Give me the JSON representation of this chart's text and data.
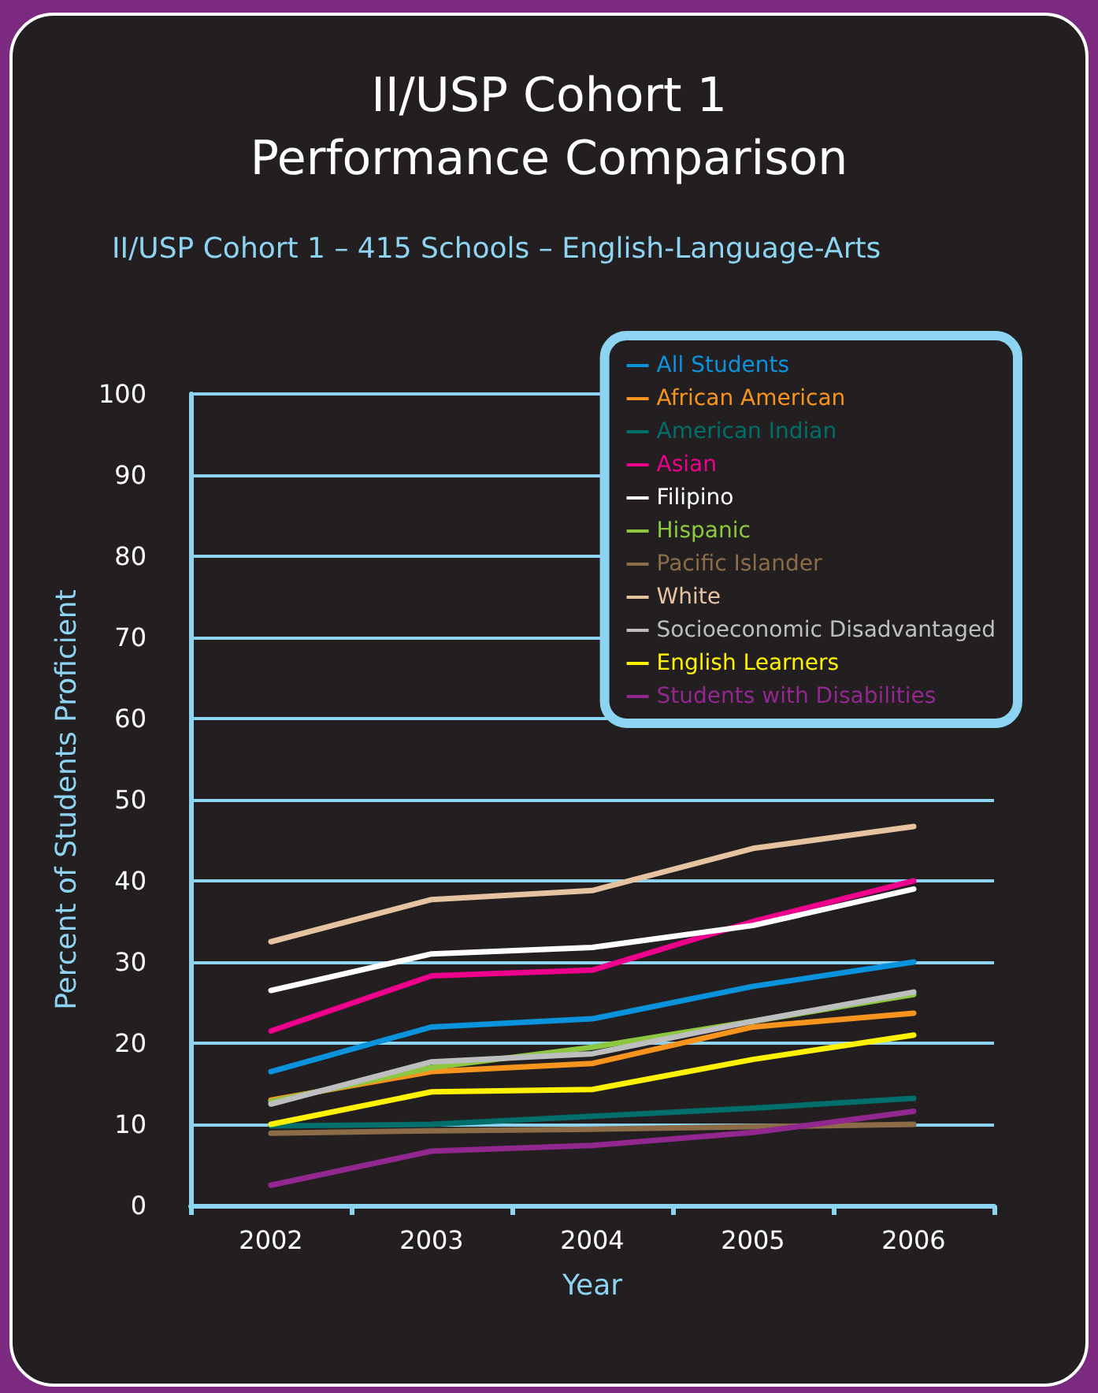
{
  "chart_data": {
    "type": "line",
    "title": "II/USP Cohort 1\nPerformance Comparison",
    "subtitle": "II/USP Cohort 1 – 415 Schools – English-Language-Arts",
    "xlabel": "Year",
    "ylabel": "Percent of Students Proficient",
    "categories": [
      "2002",
      "2003",
      "2004",
      "2005",
      "2006"
    ],
    "ylim": [
      0,
      100
    ],
    "yticks": [
      0,
      10,
      20,
      30,
      40,
      50,
      60,
      70,
      80,
      90,
      100
    ],
    "grid": "y",
    "legend": "top right",
    "marker": "none",
    "line_style": "solid",
    "series": [
      {
        "name": "All Students",
        "color": "#0a93dc",
        "values": [
          16.5,
          22,
          23,
          27,
          30
        ]
      },
      {
        "name": "African American",
        "color": "#f7941d",
        "values": [
          13,
          16.5,
          17.5,
          22,
          23.7
        ]
      },
      {
        "name": "American Indian",
        "color": "#006f6b",
        "values": [
          9.8,
          10,
          11,
          12,
          13.2
        ]
      },
      {
        "name": "Asian",
        "color": "#ec008c",
        "values": [
          21.5,
          28.3,
          29,
          35,
          40
        ]
      },
      {
        "name": "Filipino",
        "color": "#ffffff",
        "values": [
          26.5,
          31,
          31.8,
          34.5,
          39
        ]
      },
      {
        "name": "Hispanic",
        "color": "#8dc63f",
        "values": [
          12.8,
          17,
          19.5,
          22.7,
          26
        ]
      },
      {
        "name": "Pacific Islander",
        "color": "#8b6c47",
        "values": [
          8.9,
          9.2,
          9.4,
          9.7,
          10
        ]
      },
      {
        "name": "White",
        "color": "#e5c2a0",
        "values": [
          32.5,
          37.7,
          38.8,
          44,
          46.7
        ]
      },
      {
        "name": "Socioeconomic Disadvantaged",
        "color": "#bcbec0",
        "values": [
          12.5,
          17.7,
          18.7,
          22.7,
          26.3
        ]
      },
      {
        "name": "English Learners",
        "color": "#fff200",
        "values": [
          10,
          14,
          14.3,
          18,
          21
        ]
      },
      {
        "name": "Students with Disabilities",
        "color": "#92278f",
        "values": [
          2.5,
          6.7,
          7.4,
          9,
          11.6
        ]
      }
    ]
  }
}
